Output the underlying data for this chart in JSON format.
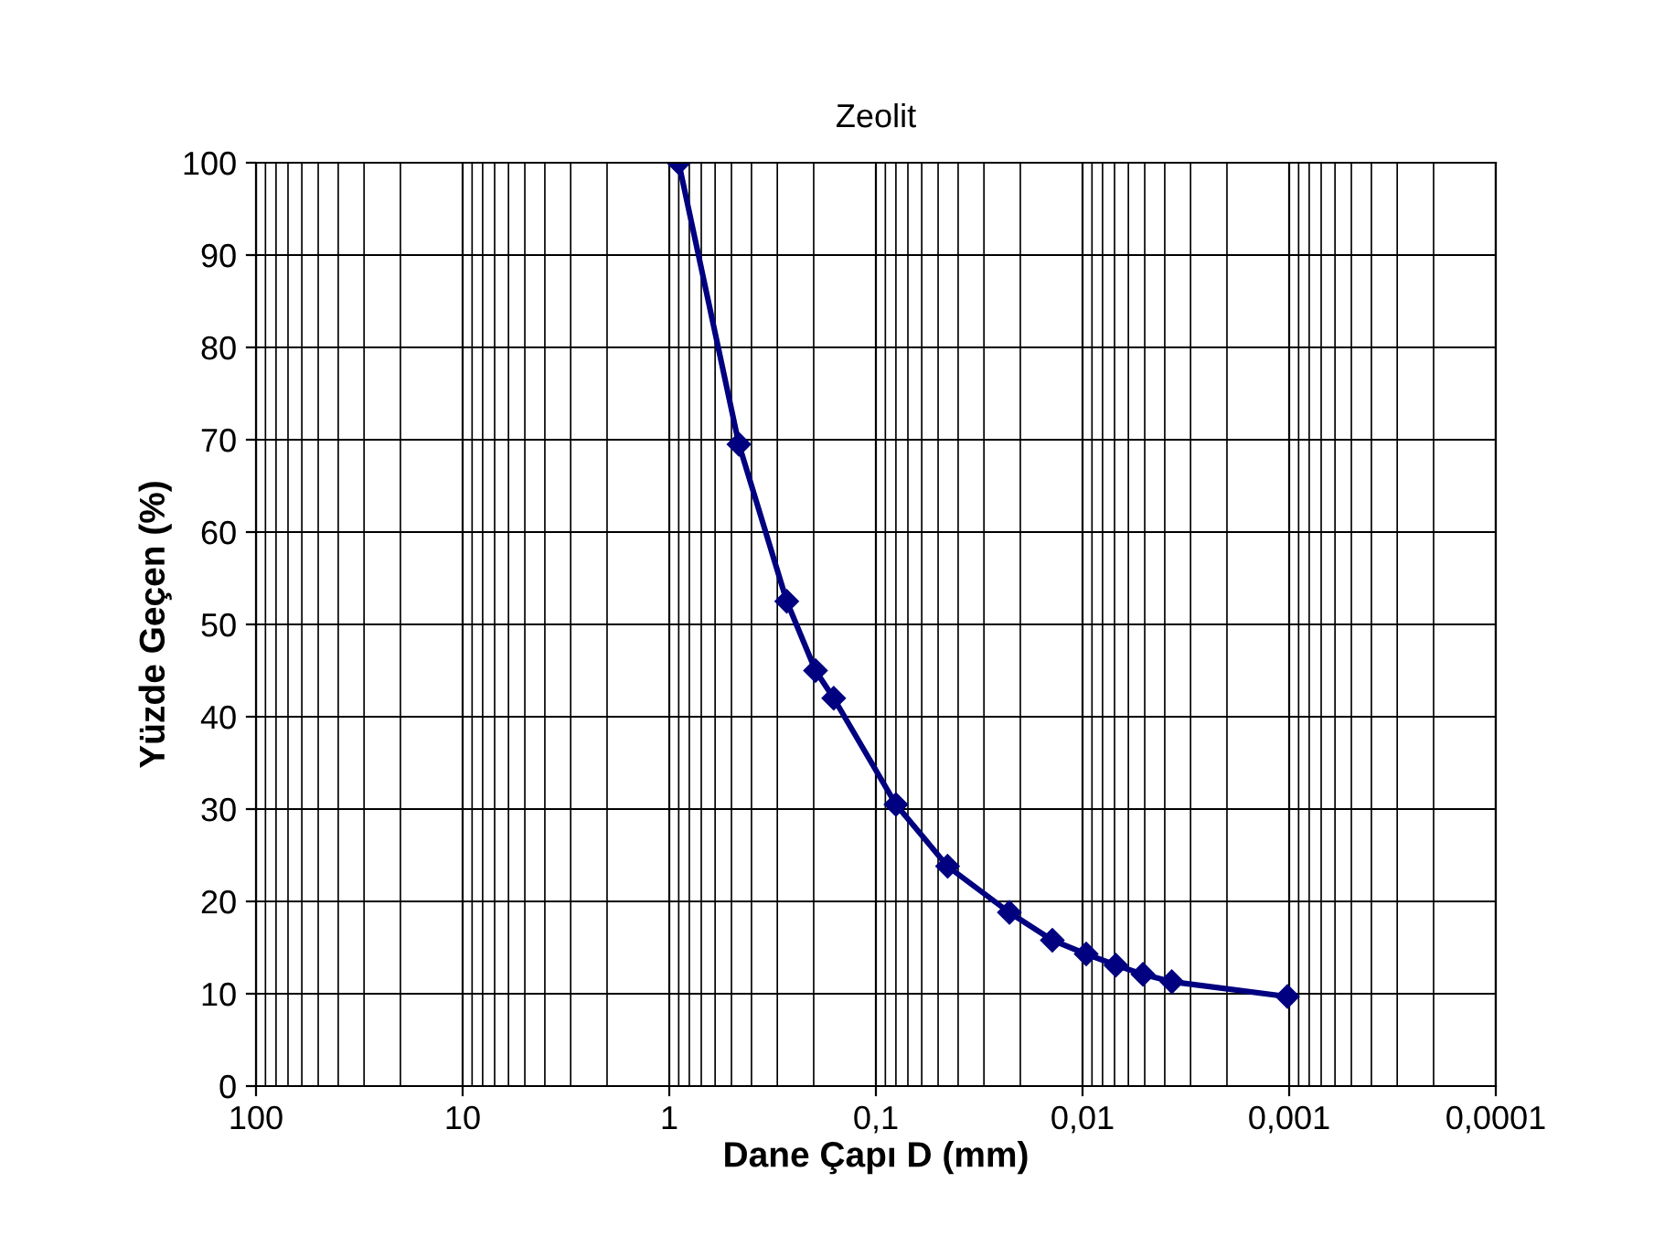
{
  "chart_data": {
    "type": "line",
    "title": "Zeolit",
    "xlabel": "Dane Çapı D (mm)",
    "ylabel": "Yüzde Geçen (%)",
    "log": "x",
    "xlim": [
      100,
      0.0001
    ],
    "xticks": [
      100,
      10,
      1,
      {
        "value": 0.1,
        "label": "0,1"
      },
      {
        "value": 0.01,
        "label": "0,01"
      },
      {
        "value": 0.001,
        "label": "0,001"
      },
      {
        "value": 0.0001,
        "label": "0,0001"
      }
    ],
    "ylim": [
      0,
      100
    ],
    "yticks": [
      0,
      10,
      20,
      30,
      40,
      50,
      60,
      70,
      80,
      90,
      100
    ],
    "grid": true,
    "marker": "diamond",
    "line_style": "solid",
    "legend": false,
    "x": [
      0.9,
      0.46,
      0.27,
      0.196,
      0.16,
      0.08,
      0.045,
      0.0226,
      0.014,
      0.0096,
      0.0069,
      0.0051,
      0.0037,
      0.00102
    ],
    "series": [
      {
        "color": "#000080",
        "values": [
          100,
          69.5,
          52.5,
          45,
          42,
          30.5,
          23.8,
          18.8,
          15.8,
          14.3,
          13.1,
          12.1,
          11.3,
          9.7
        ]
      }
    ]
  }
}
